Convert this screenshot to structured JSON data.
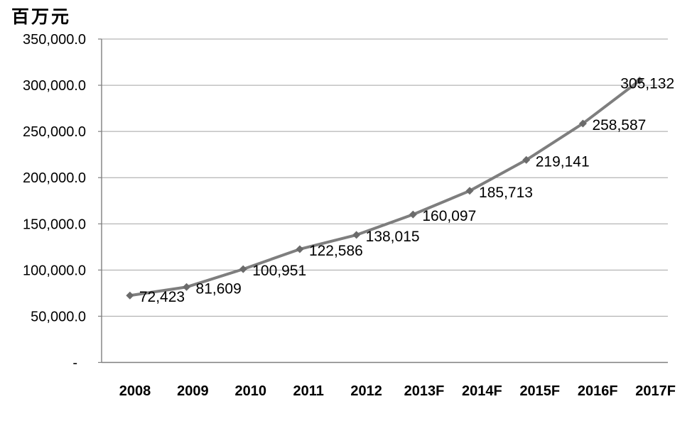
{
  "chart_data": {
    "type": "line",
    "unit_label": "百万元",
    "categories": [
      "2008",
      "2009",
      "2010",
      "2011",
      "2012",
      "2013F",
      "2014F",
      "2015F",
      "2016F",
      "2017F"
    ],
    "series": [
      {
        "name": "value",
        "values": [
          72423,
          81609,
          100951,
          122586,
          138015,
          160097,
          185713,
          219141,
          258587,
          305132
        ],
        "data_labels": [
          "72,423",
          "81,609",
          "100,951",
          "122,586",
          "138,015",
          "160,097",
          "185,713",
          "219,141",
          "258,587",
          "305,132"
        ]
      }
    ],
    "y_axis": {
      "min": 0,
      "max": 350000,
      "step": 50000,
      "tick_labels": [
        "-",
        "50,000.0",
        "100,000.0",
        "150,000.0",
        "200,000.0",
        "250,000.0",
        "300,000.0",
        "350,000.0"
      ]
    },
    "grid": true,
    "legend": "none",
    "colors": {
      "line": "#7e7e7e",
      "marker": "#6b6b6b",
      "gridline": "#a3a3a3",
      "axis": "#7f7f7f",
      "text": "#000000",
      "background": "#ffffff"
    }
  }
}
